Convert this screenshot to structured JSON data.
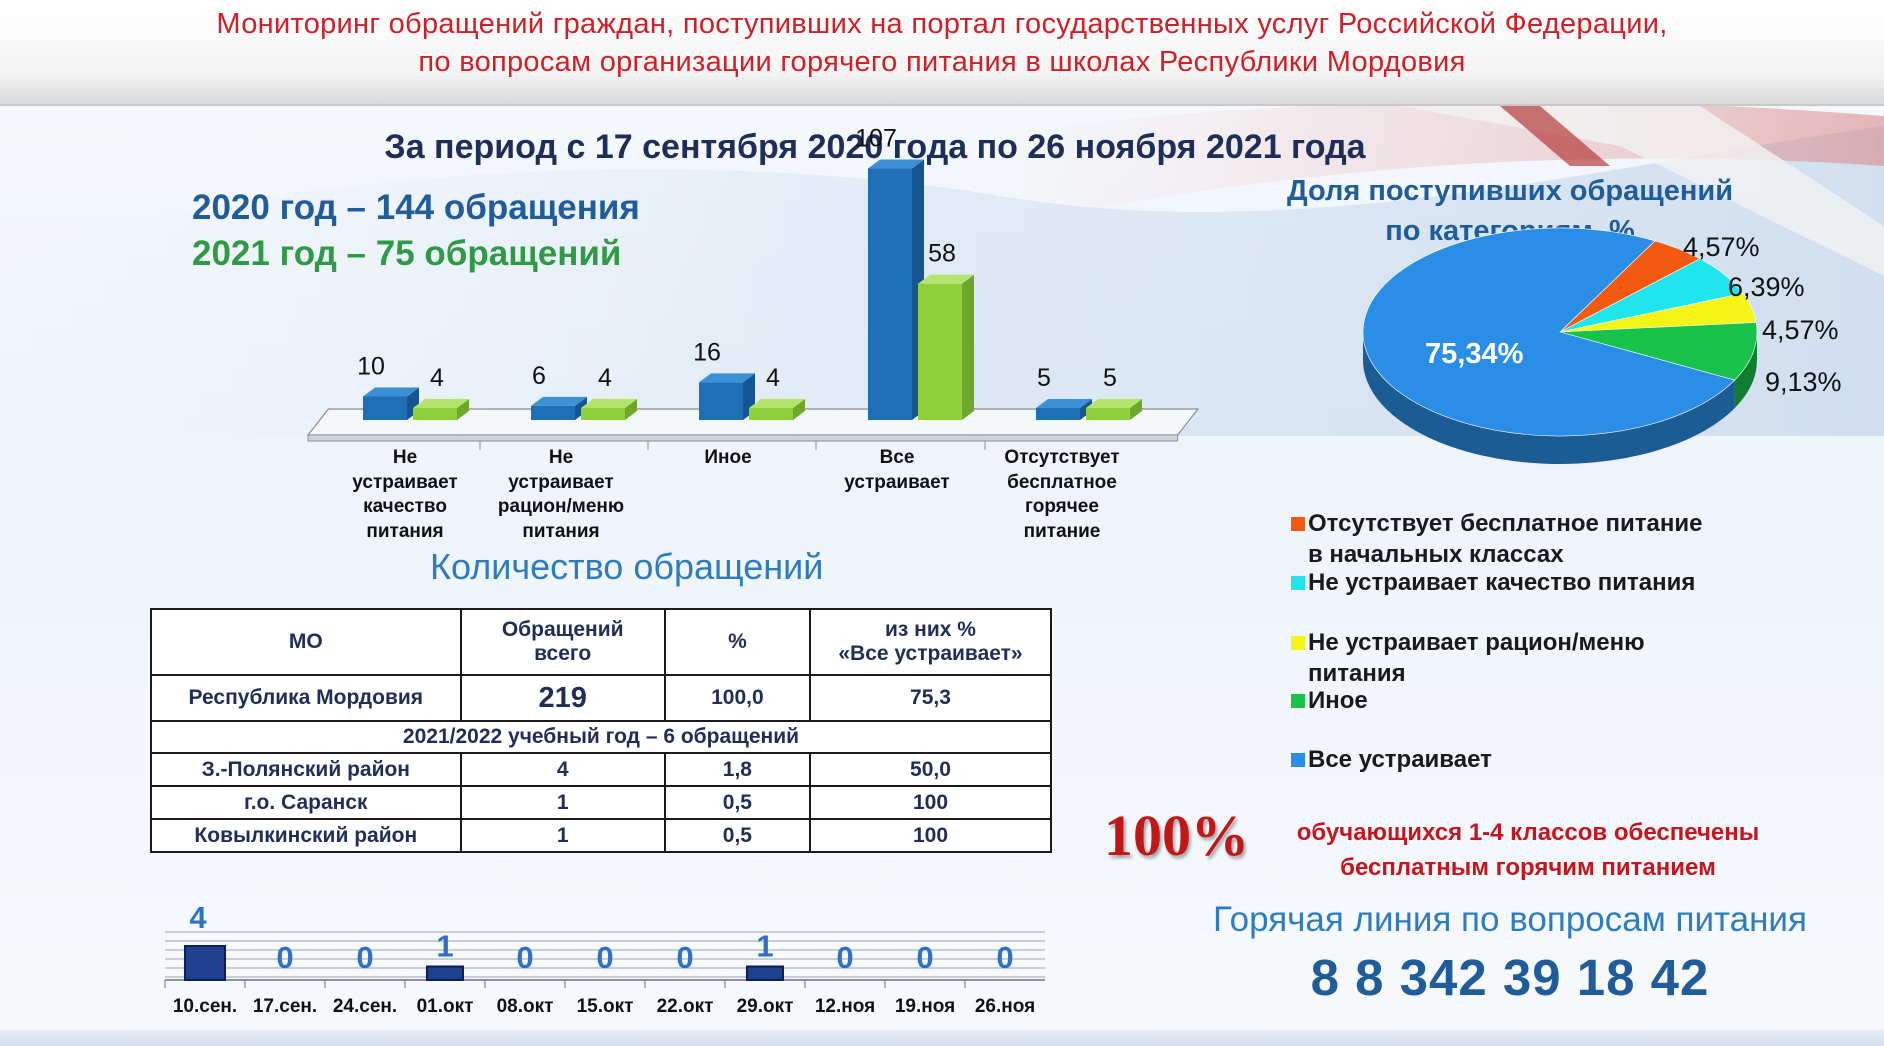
{
  "header": {
    "line1": "Мониторинг обращений граждан, поступивших на портал государственных услуг Российской Федерации,",
    "line2": "по вопросам организации горячего питания в школах Республики Мордовия"
  },
  "period_title": "За период с 17 сентября 2020 года по 26 ноября 2021 года",
  "year_totals": {
    "y2020": "2020 год – 144 обращения",
    "y2021": "2021 год – 75 обращений"
  },
  "colors": {
    "series_2020": "#1e6fb5",
    "series_2021": "#8fcf3c",
    "accent_red": "#c4161c",
    "title_blue": "#1f5c99"
  },
  "chart_data": [
    {
      "type": "bar",
      "title": "Количество обращений",
      "categories": [
        "Не устраивает качество питания",
        "Не устраивает рацион/меню питания",
        "Иное",
        "Все устраивает",
        "Отсутствует бесплатное горячее питание"
      ],
      "category_lines": [
        [
          "Не",
          "устраивает",
          "качество",
          "питания"
        ],
        [
          "Не",
          "устраивает",
          "рацион/меню",
          "питания"
        ],
        [
          "Иное"
        ],
        [
          "Все",
          "устраивает"
        ],
        [
          "Отсутствует",
          "бесплатное",
          "горячее",
          "питание"
        ]
      ],
      "series": [
        {
          "values": [
            10,
            6,
            16,
            107,
            5
          ]
        },
        {
          "values": [
            4,
            4,
            4,
            58,
            5
          ]
        }
      ],
      "ylim": [
        0,
        110
      ]
    },
    {
      "type": "pie",
      "title": "Доля поступивших обращений по категориям, %",
      "title_lines": [
        "Доля поступивших обращений",
        "по категориям, %"
      ],
      "slices": [
        {
          "label": "Отсутствует  бесплатное питание в начальных классах",
          "value": 4.57,
          "display": "4,57%",
          "color": "#f25a12"
        },
        {
          "label": "Не устраивает качество питания",
          "value": 6.39,
          "display": "6,39%",
          "color": "#20e4ee"
        },
        {
          "label": "Не устраивает рацион/меню питания",
          "value": 4.57,
          "display": "4,57%",
          "color": "#f4f416"
        },
        {
          "label": "Иное",
          "value": 9.13,
          "display": "9,13%",
          "color": "#19c24a"
        },
        {
          "label": "Все устраивает",
          "value": 75.34,
          "display": "75,34%",
          "color": "#2a8ee6"
        }
      ],
      "legend": [
        {
          "lines": [
            "Отсутствует  бесплатное питание",
            "в начальных классах"
          ],
          "color": "#f25a12"
        },
        {
          "lines": [
            "Не устраивает качество питания"
          ],
          "color": "#20e4ee"
        },
        {
          "lines": [
            "Не устраивает рацион/меню",
            "питания"
          ],
          "color": "#f4f416"
        },
        {
          "lines": [
            "Иное"
          ],
          "color": "#19c24a"
        },
        {
          "lines": [
            "Все устраивает"
          ],
          "color": "#2a8ee6"
        }
      ]
    },
    {
      "type": "bar",
      "categories": [
        "10.сен.",
        "17.сен.",
        "24.сен.",
        "01.окт",
        "08.окт",
        "15.окт",
        "22.окт",
        "29.окт",
        "12.ноя",
        "19.ноя",
        "26.ноя"
      ],
      "values": [
        4,
        0,
        0,
        1,
        0,
        0,
        0,
        1,
        0,
        0,
        0
      ],
      "ylim": [
        0,
        4
      ]
    }
  ],
  "table": {
    "headers": [
      [
        "МО"
      ],
      [
        "Обращений",
        "всего"
      ],
      [
        "%"
      ],
      [
        "из них %",
        "«Все устраивает»"
      ]
    ],
    "total_row": [
      "Республика Мордовия",
      "219",
      "100,0",
      "75,3"
    ],
    "section_label": "2021/2022 учебный год – 6 обращений",
    "rows": [
      [
        "З.-Полянский район",
        "4",
        "1,8",
        "50,0"
      ],
      [
        "г.о. Саранск",
        "1",
        "0,5",
        "100"
      ],
      [
        "Ковылкинский район",
        "1",
        "0,5",
        "100"
      ]
    ]
  },
  "info": {
    "hundred": "100%",
    "provided_line1": "обучающихся 1-4  классов обеспечены",
    "provided_line2": "бесплатным горячим питанием",
    "hotline_label": "Горячая линия по вопросам питания",
    "phone": "8 8 342 39 18 42"
  }
}
